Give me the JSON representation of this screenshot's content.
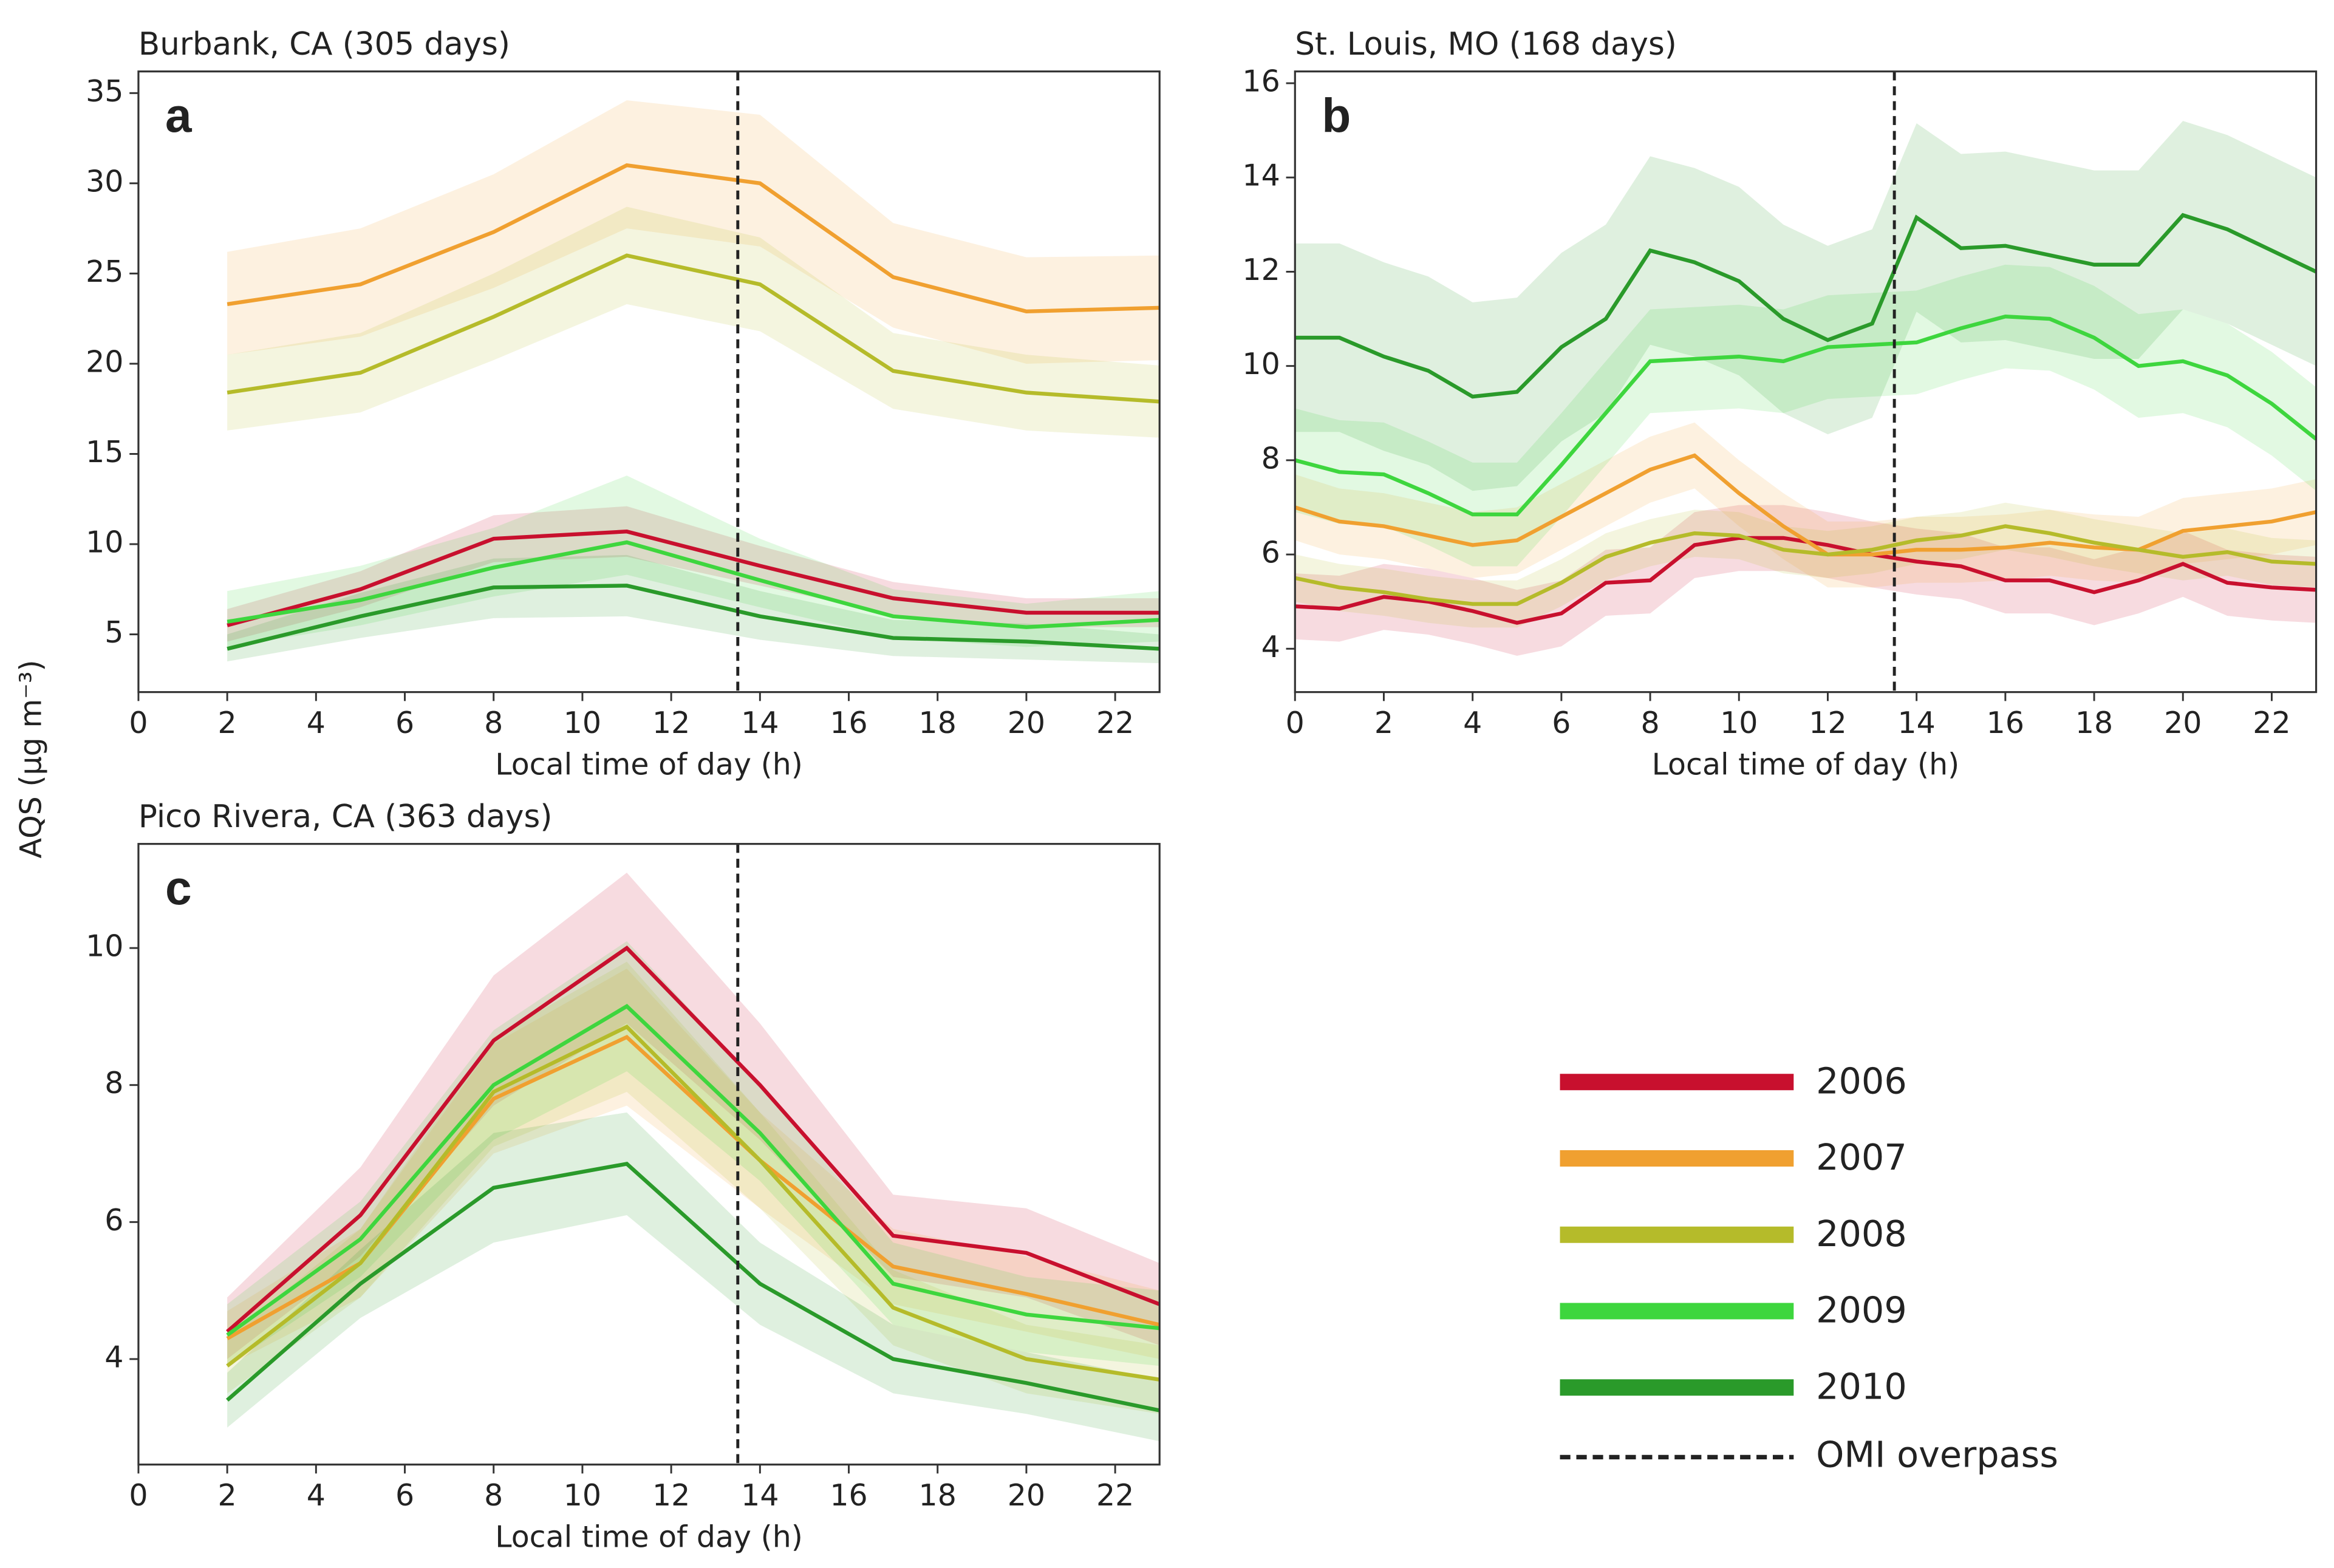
{
  "chart_data": [
    {
      "type": "line",
      "title": "Burbank, CA (305 days)",
      "panel": "a",
      "ylabel": "AQS (μg m⁻³)",
      "xlabel": "Local time of day (h)",
      "x": [
        2,
        5,
        8,
        11,
        14,
        17,
        20,
        23
      ],
      "xlim": [
        0,
        23
      ],
      "xticks": [
        0,
        2,
        4,
        6,
        8,
        10,
        12,
        14,
        16,
        18,
        20,
        22
      ],
      "ylim": [
        1.8,
        36.2
      ],
      "yticks": [
        5,
        10,
        15,
        20,
        25,
        30,
        35
      ],
      "vline": 13.5,
      "vline_label": "OMI overpass",
      "series": [
        {
          "name": "2006",
          "color": "#c8102e",
          "values": [
            5.5,
            7.5,
            10.3,
            10.7,
            8.8,
            7.0,
            6.2,
            6.2
          ],
          "lower": [
            4.6,
            6.5,
            9.0,
            9.3,
            7.7,
            6.1,
            5.4,
            5.4
          ],
          "upper": [
            6.4,
            8.5,
            11.6,
            12.1,
            9.9,
            7.9,
            7.0,
            7.0
          ]
        },
        {
          "name": "2007",
          "color": "#f0a030",
          "values": [
            23.3,
            24.4,
            27.3,
            31.0,
            30.0,
            24.8,
            22.9,
            23.1
          ],
          "lower": [
            20.5,
            21.5,
            24.2,
            27.5,
            26.5,
            22.0,
            20.0,
            20.2
          ],
          "upper": [
            26.2,
            27.5,
            30.5,
            34.6,
            33.8,
            27.8,
            25.9,
            26.0
          ]
        },
        {
          "name": "2008",
          "color": "#b5bb2a",
          "values": [
            18.4,
            19.5,
            22.6,
            26.0,
            24.4,
            19.6,
            18.4,
            17.9
          ],
          "lower": [
            16.3,
            17.3,
            20.2,
            23.3,
            21.8,
            17.5,
            16.3,
            15.9
          ],
          "upper": [
            20.5,
            21.7,
            25.0,
            28.7,
            27.0,
            21.7,
            20.5,
            19.9
          ]
        },
        {
          "name": "2009",
          "color": "#3ed63e",
          "values": [
            5.7,
            6.9,
            8.7,
            10.1,
            8.0,
            6.0,
            5.4,
            5.8
          ],
          "lower": [
            4.3,
            5.5,
            7.1,
            8.3,
            6.5,
            4.8,
            4.3,
            4.6
          ],
          "upper": [
            7.4,
            8.8,
            10.9,
            13.8,
            10.3,
            7.5,
            6.7,
            7.4
          ]
        },
        {
          "name": "2010",
          "color": "#2a9a2a",
          "values": [
            4.2,
            6.0,
            7.6,
            7.7,
            6.0,
            4.8,
            4.6,
            4.2
          ],
          "lower": [
            3.5,
            4.8,
            5.9,
            6.0,
            4.7,
            3.8,
            3.6,
            3.4
          ],
          "upper": [
            5.0,
            7.3,
            9.2,
            9.4,
            7.4,
            5.8,
            5.6,
            5.0
          ]
        }
      ]
    },
    {
      "type": "line",
      "title": "St. Louis, MO (168 days)",
      "panel": "b",
      "xlabel": "Local time of day (h)",
      "x": [
        0,
        1,
        2,
        3,
        4,
        5,
        6,
        7,
        8,
        9,
        10,
        11,
        12,
        13,
        14,
        15,
        16,
        17,
        18,
        19,
        20,
        21,
        22,
        23
      ],
      "xlim": [
        0,
        23
      ],
      "xticks": [
        0,
        2,
        4,
        6,
        8,
        10,
        12,
        14,
        16,
        18,
        20,
        22
      ],
      "ylim": [
        3.08,
        16.25
      ],
      "yticks": [
        4,
        6,
        8,
        10,
        12,
        14,
        16
      ],
      "vline": 13.5,
      "series": [
        {
          "color": "#c8102e",
          "values": [
            4.9,
            4.85,
            5.1,
            5.0,
            4.8,
            4.55,
            4.75,
            5.4,
            5.45,
            6.2,
            6.35,
            6.35,
            6.2,
            6.0,
            5.85,
            5.75,
            5.45,
            5.45,
            5.2,
            5.45,
            5.8,
            5.4,
            5.3,
            5.25
          ],
          "lower": [
            4.2,
            4.15,
            4.4,
            4.3,
            4.1,
            3.85,
            4.05,
            4.7,
            4.75,
            5.5,
            5.65,
            5.65,
            5.5,
            5.3,
            5.15,
            5.05,
            4.75,
            4.75,
            4.5,
            4.75,
            5.1,
            4.7,
            4.6,
            4.55
          ],
          "upper": [
            5.6,
            5.55,
            5.8,
            5.7,
            5.5,
            5.25,
            5.45,
            6.1,
            6.15,
            6.9,
            7.05,
            7.05,
            6.9,
            6.7,
            6.55,
            6.45,
            6.15,
            6.15,
            5.9,
            6.15,
            6.5,
            6.1,
            6.0,
            5.95
          ]
        },
        {
          "color": "#f0a030",
          "values": [
            7.0,
            6.7,
            6.6,
            6.4,
            6.2,
            6.3,
            6.8,
            7.3,
            7.8,
            8.1,
            7.3,
            6.6,
            6.0,
            6.0,
            6.1,
            6.1,
            6.15,
            6.25,
            6.15,
            6.1,
            6.5,
            6.6,
            6.7,
            6.9
          ],
          "lower": [
            6.3,
            6.0,
            5.9,
            5.7,
            5.5,
            5.6,
            6.1,
            6.6,
            7.1,
            7.4,
            6.6,
            5.9,
            5.3,
            5.3,
            5.4,
            5.4,
            5.45,
            5.55,
            5.45,
            5.4,
            5.8,
            5.9,
            6.0,
            6.2
          ],
          "upper": [
            7.7,
            7.4,
            7.3,
            7.1,
            6.9,
            7.0,
            7.5,
            8.0,
            8.5,
            8.8,
            8.0,
            7.3,
            6.7,
            6.7,
            6.8,
            6.8,
            6.85,
            6.95,
            6.85,
            6.8,
            7.2,
            7.3,
            7.4,
            7.6
          ]
        },
        {
          "color": "#b5bb2a",
          "values": [
            5.5,
            5.3,
            5.2,
            5.05,
            4.95,
            4.95,
            5.4,
            5.95,
            6.25,
            6.45,
            6.4,
            6.1,
            6.0,
            6.1,
            6.3,
            6.4,
            6.6,
            6.45,
            6.25,
            6.1,
            5.95,
            6.05,
            5.85,
            5.8
          ],
          "lower": [
            5.0,
            4.8,
            4.7,
            4.55,
            4.45,
            4.45,
            4.9,
            5.45,
            5.75,
            5.95,
            5.9,
            5.6,
            5.5,
            5.6,
            5.8,
            5.9,
            6.1,
            5.95,
            5.75,
            5.6,
            5.45,
            5.55,
            5.35,
            5.3
          ],
          "upper": [
            6.0,
            5.8,
            5.7,
            5.55,
            5.45,
            5.45,
            5.9,
            6.45,
            6.75,
            6.95,
            6.9,
            6.6,
            6.5,
            6.6,
            6.8,
            6.9,
            7.1,
            6.95,
            6.75,
            6.6,
            6.45,
            6.55,
            6.35,
            6.3
          ]
        },
        {
          "color": "#3ed63e",
          "values": [
            8.0,
            7.75,
            7.7,
            7.3,
            6.85,
            6.85,
            7.9,
            9.0,
            10.1,
            10.15,
            10.2,
            10.1,
            10.4,
            10.45,
            10.5,
            10.8,
            11.05,
            11.0,
            10.6,
            10.0,
            10.1,
            9.8,
            9.2,
            8.45
          ],
          "lower": [
            6.9,
            6.65,
            6.6,
            6.2,
            5.75,
            5.75,
            6.8,
            7.9,
            9.0,
            9.05,
            9.1,
            9.0,
            9.3,
            9.35,
            9.4,
            9.7,
            9.95,
            9.9,
            9.5,
            8.9,
            9.0,
            8.7,
            8.1,
            7.35
          ],
          "upper": [
            9.1,
            8.85,
            8.8,
            8.4,
            7.95,
            7.95,
            9.0,
            10.1,
            11.2,
            11.25,
            11.3,
            11.2,
            11.5,
            11.55,
            11.6,
            11.9,
            12.15,
            12.1,
            11.7,
            11.1,
            11.2,
            10.9,
            10.3,
            9.55
          ]
        },
        {
          "color": "#2a9a2a",
          "values": [
            10.6,
            10.6,
            10.2,
            9.9,
            9.35,
            9.45,
            10.4,
            11.0,
            12.45,
            12.2,
            11.8,
            11.0,
            10.55,
            10.9,
            13.15,
            12.5,
            12.55,
            12.35,
            12.15,
            12.15,
            13.2,
            12.9,
            12.45,
            12.0
          ],
          "lower": [
            8.6,
            8.6,
            8.2,
            7.9,
            7.35,
            7.45,
            8.4,
            9.0,
            10.45,
            10.2,
            9.8,
            9.0,
            8.55,
            8.9,
            11.15,
            10.5,
            10.55,
            10.35,
            10.15,
            10.15,
            11.2,
            10.9,
            10.45,
            10.0
          ],
          "upper": [
            12.6,
            12.6,
            12.2,
            11.9,
            11.35,
            11.45,
            12.4,
            13.0,
            14.45,
            14.2,
            13.8,
            13.0,
            12.55,
            12.9,
            15.15,
            14.5,
            14.55,
            14.35,
            14.15,
            14.15,
            15.2,
            14.9,
            14.45,
            14.0
          ]
        }
      ]
    },
    {
      "type": "line",
      "title": "Pico Rivera, CA (363 days)",
      "panel": "c",
      "xlabel": "Local time of day (h)",
      "x": [
        2,
        5,
        8,
        11,
        14,
        17,
        20,
        23
      ],
      "xlim": [
        0,
        23
      ],
      "xticks": [
        0,
        2,
        4,
        6,
        8,
        10,
        12,
        14,
        16,
        18,
        20,
        22
      ],
      "ylim": [
        2.46,
        11.52
      ],
      "yticks": [
        4,
        6,
        8,
        10
      ],
      "vline": 13.5,
      "series": [
        {
          "color": "#c8102e",
          "values": [
            4.4,
            6.1,
            8.65,
            10.0,
            8.0,
            5.8,
            5.55,
            4.8
          ],
          "lower": [
            4.0,
            5.5,
            7.7,
            8.9,
            7.2,
            5.2,
            4.9,
            4.2
          ],
          "upper": [
            4.9,
            6.8,
            9.6,
            11.1,
            8.9,
            6.4,
            6.2,
            5.4
          ]
        },
        {
          "color": "#f0a030",
          "values": [
            4.3,
            5.4,
            7.8,
            8.7,
            6.9,
            5.35,
            4.95,
            4.5
          ],
          "lower": [
            3.9,
            4.9,
            7.0,
            7.7,
            6.2,
            4.8,
            4.4,
            4.0
          ],
          "upper": [
            4.7,
            5.9,
            8.6,
            9.7,
            7.6,
            5.9,
            5.5,
            5.0
          ]
        },
        {
          "color": "#b5bb2a",
          "values": [
            3.9,
            5.4,
            7.9,
            8.85,
            6.9,
            4.75,
            4.0,
            3.7
          ],
          "lower": [
            3.5,
            4.9,
            7.1,
            7.9,
            6.2,
            4.2,
            3.5,
            3.2
          ],
          "upper": [
            4.3,
            5.9,
            8.7,
            9.8,
            7.6,
            5.3,
            4.5,
            4.2
          ]
        },
        {
          "color": "#3ed63e",
          "values": [
            4.35,
            5.75,
            8.0,
            9.15,
            7.3,
            5.1,
            4.65,
            4.45
          ],
          "lower": [
            3.9,
            5.2,
            7.2,
            8.2,
            6.6,
            4.5,
            4.1,
            3.9
          ],
          "upper": [
            4.8,
            6.3,
            8.8,
            10.1,
            8.0,
            5.7,
            5.2,
            5.0
          ]
        },
        {
          "color": "#2a9a2a",
          "values": [
            3.4,
            5.1,
            6.5,
            6.85,
            5.1,
            4.0,
            3.65,
            3.25
          ],
          "lower": [
            3.0,
            4.6,
            5.7,
            6.1,
            4.5,
            3.5,
            3.2,
            2.8
          ],
          "upper": [
            3.8,
            5.6,
            7.3,
            7.6,
            5.7,
            4.5,
            4.1,
            3.7
          ]
        }
      ]
    }
  ]
}
